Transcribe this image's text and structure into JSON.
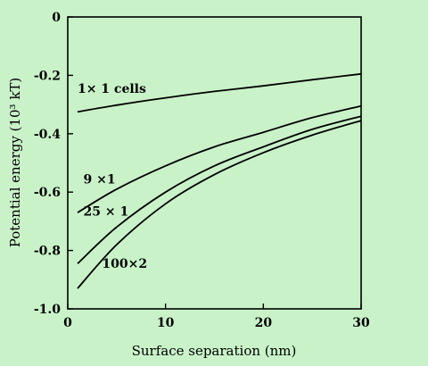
{
  "chart_data": {
    "type": "line",
    "xlabel": "Surface separation (nm)",
    "ylabel": "Potential energy (10³ kT)",
    "xlim": [
      0,
      30
    ],
    "ylim": [
      -1.0,
      0
    ],
    "xticks": [
      0,
      10,
      20,
      30
    ],
    "yticks": [
      0,
      -0.2,
      -0.4,
      -0.6,
      -0.8,
      -1.0
    ],
    "xtick_labels": [
      "0",
      "10",
      "20",
      "30"
    ],
    "ytick_labels": [
      "0",
      "-0.2",
      "-0.4",
      "-0.6",
      "-0.8",
      "-1.0"
    ],
    "grid": false,
    "background": "#c9f2c9",
    "line_color": "#000000",
    "series": [
      {
        "name": "1× 1 cells",
        "x": [
          1,
          5,
          10,
          15,
          20,
          25,
          30
        ],
        "y": [
          -0.325,
          -0.302,
          -0.277,
          -0.255,
          -0.236,
          -0.215,
          -0.195
        ]
      },
      {
        "name": "9 ×1",
        "x": [
          1,
          5,
          10,
          15,
          20,
          25,
          30
        ],
        "y": [
          -0.67,
          -0.59,
          -0.51,
          -0.445,
          -0.395,
          -0.345,
          -0.305
        ]
      },
      {
        "name": "25 × 1",
        "x": [
          1,
          5,
          10,
          15,
          20,
          25,
          30
        ],
        "y": [
          -0.845,
          -0.72,
          -0.6,
          -0.51,
          -0.445,
          -0.385,
          -0.34
        ]
      },
      {
        "name": "100×2",
        "x": [
          1,
          5,
          10,
          15,
          20,
          25,
          30
        ],
        "y": [
          -0.93,
          -0.78,
          -0.64,
          -0.54,
          -0.465,
          -0.405,
          -0.355
        ]
      }
    ],
    "annotations": [
      {
        "series": 0,
        "text": "1× 1 cells",
        "x": 1,
        "y": -0.26
      },
      {
        "series": 1,
        "text": "9 ×1",
        "x": 1.6,
        "y": -0.57
      },
      {
        "series": 2,
        "text": "25 × 1",
        "x": 1.6,
        "y": -0.68
      },
      {
        "series": 3,
        "text": "100×2",
        "x": 3.5,
        "y": -0.86
      }
    ]
  }
}
